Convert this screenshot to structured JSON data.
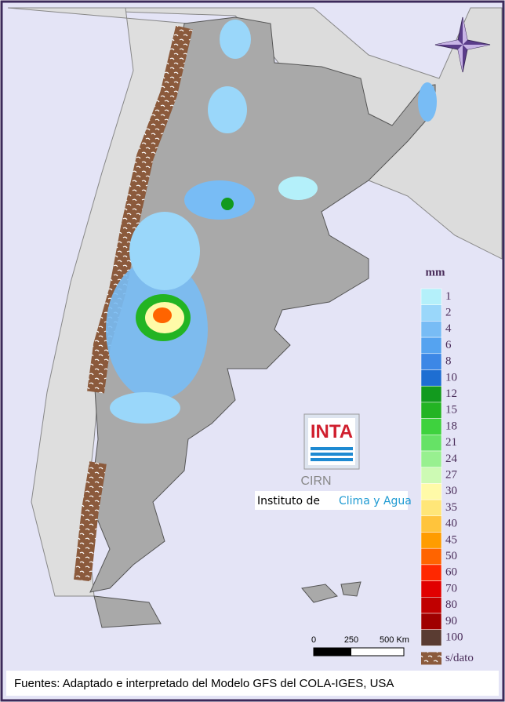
{
  "legend": {
    "unit": "mm",
    "items": [
      {
        "label": 1,
        "color": "#b4f0fa"
      },
      {
        "label": 2,
        "color": "#9ad7fa"
      },
      {
        "label": 4,
        "color": "#78bcf5"
      },
      {
        "label": 6,
        "color": "#55a3f0"
      },
      {
        "label": 8,
        "color": "#3c87e6"
      },
      {
        "label": 10,
        "color": "#1e6ed2"
      },
      {
        "label": 12,
        "color": "#129a1e"
      },
      {
        "label": 15,
        "color": "#23b423"
      },
      {
        "label": 18,
        "color": "#3ed23e"
      },
      {
        "label": 21,
        "color": "#66e266"
      },
      {
        "label": 24,
        "color": "#98f090"
      },
      {
        "label": 27,
        "color": "#cdfab4"
      },
      {
        "label": 30,
        "color": "#fffaa8"
      },
      {
        "label": 35,
        "color": "#ffe678"
      },
      {
        "label": 40,
        "color": "#ffc43c"
      },
      {
        "label": 45,
        "color": "#ff9c00"
      },
      {
        "label": 50,
        "color": "#ff6400"
      },
      {
        "label": 60,
        "color": "#ff2800"
      },
      {
        "label": 70,
        "color": "#e10000"
      },
      {
        "label": 80,
        "color": "#c00000"
      },
      {
        "label": 90,
        "color": "#a00000"
      },
      {
        "label": 100,
        "color": "#5a3c32"
      }
    ],
    "no_data": "s/dato"
  },
  "scale_bar": {
    "labels": [
      "0",
      "250",
      "500 Km"
    ]
  },
  "logo": {
    "inta": "INTA",
    "cirn": "CIRN",
    "institute": "Instituto de",
    "institute_highlight": "Clima y Agua"
  },
  "footer": "Fuentes: Adaptado e interpretado del Modelo GFS del COLA-IGES, USA"
}
